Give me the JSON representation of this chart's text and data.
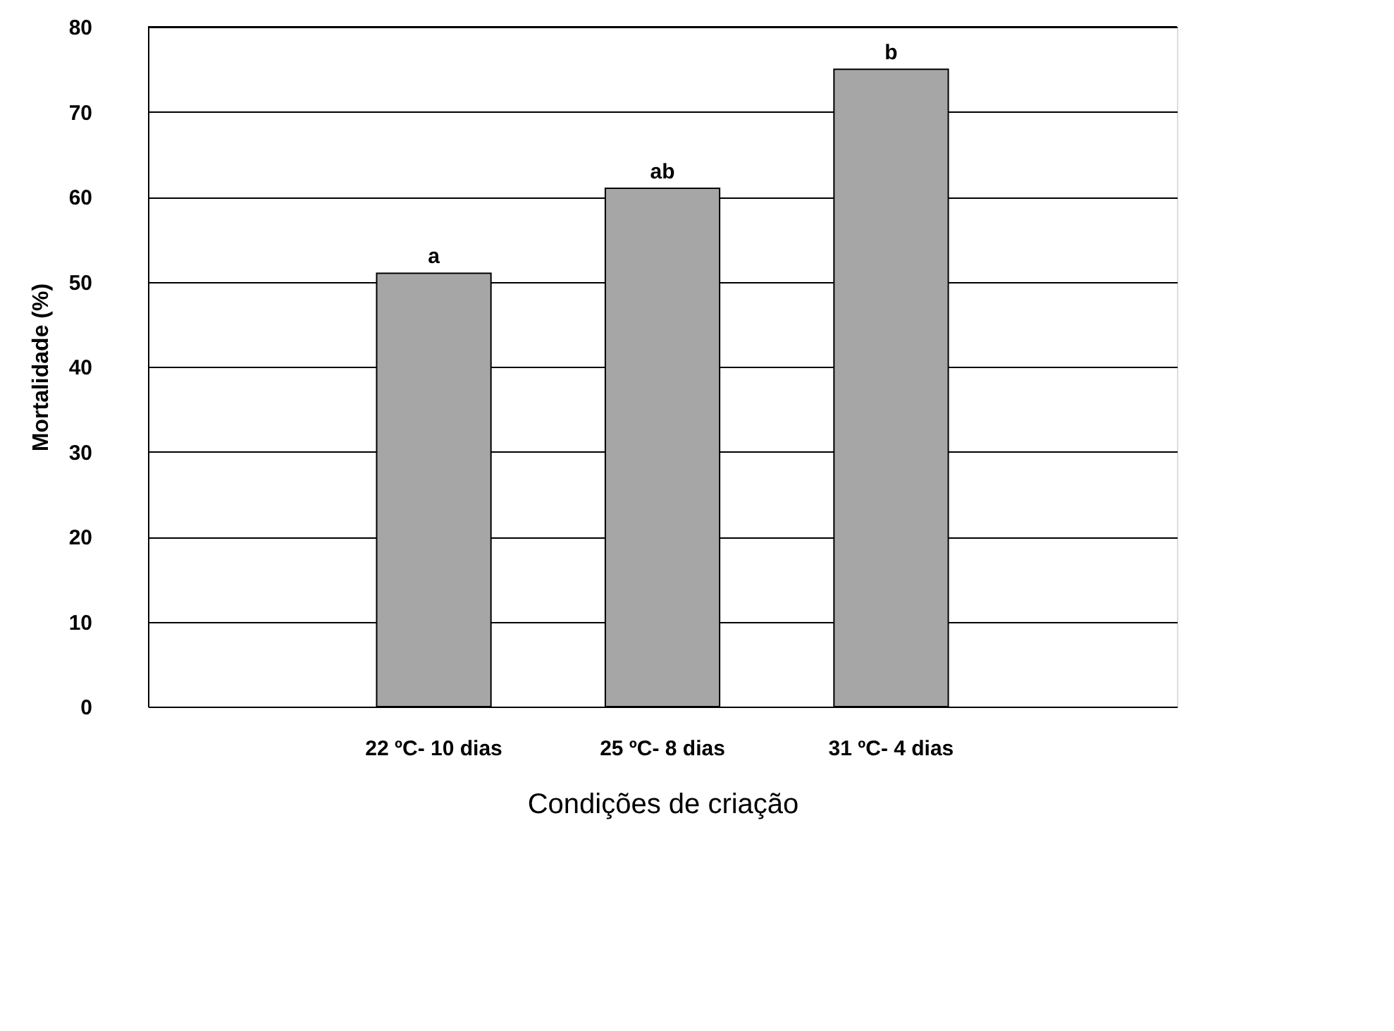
{
  "chart_data": {
    "type": "bar",
    "categories": [
      "22 ºC- 10 dias",
      "25 ºC- 8 dias",
      "31 ºC- 4 dias"
    ],
    "values": [
      51,
      61,
      75
    ],
    "color": "#a6a6a6",
    "xlabel": "Condições de criação",
    "ylabel": "Mortalidade (%)",
    "ylim": [
      0,
      80
    ],
    "yticks": [
      0,
      10,
      20,
      30,
      40,
      50,
      60,
      70,
      80
    ],
    "grid": "y",
    "annotations": [
      "a",
      "ab",
      "b"
    ]
  }
}
